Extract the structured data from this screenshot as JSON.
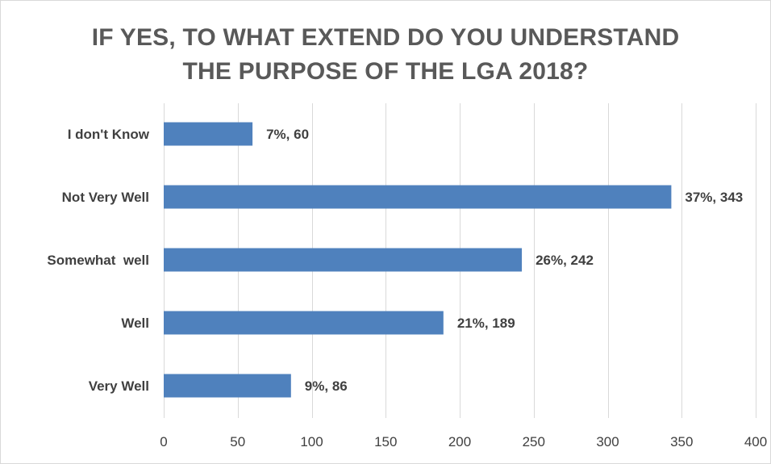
{
  "chart_data": {
    "type": "bar",
    "orientation": "horizontal",
    "title_lines": [
      "IF YES, TO WHAT EXTEND DO YOU UNDERSTAND",
      "THE PURPOSE OF THE LGA 2018?"
    ],
    "categories": [
      "I don't Know",
      "Not Very Well",
      "Somewhat  well",
      "Well",
      "Very Well"
    ],
    "values": [
      60,
      343,
      242,
      189,
      86
    ],
    "data_labels": [
      "7%, 60",
      "37%, 343",
      "26%, 242",
      "21%, 189",
      "9%, 86"
    ],
    "xlim": [
      0,
      400
    ],
    "x_ticks": [
      0,
      50,
      100,
      150,
      200,
      250,
      300,
      350,
      400
    ],
    "xlabel": "",
    "ylabel": "",
    "grid": "vertical",
    "legend": "none",
    "bar_color": "#4f81bd",
    "grid_color": "#d9d9d9"
  }
}
